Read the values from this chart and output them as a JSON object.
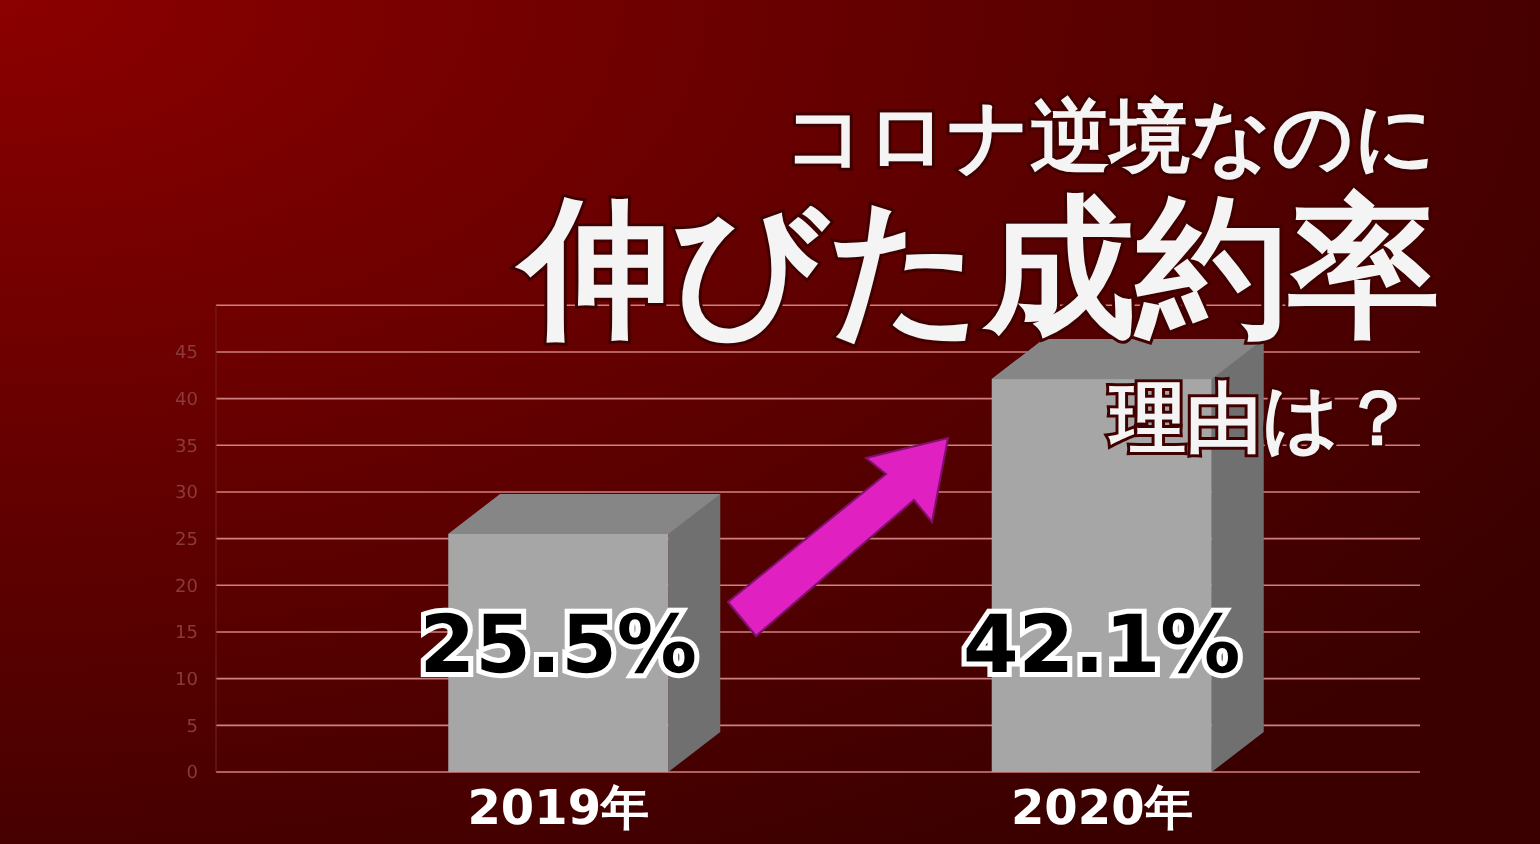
{
  "chart_data": {
    "type": "bar",
    "title": "伸びた成約率",
    "subtitle": "コロナ逆境なのに",
    "annotations": [
      "理由は？"
    ],
    "categories": [
      "2019年",
      "2020年"
    ],
    "values": [
      25.5,
      42.1
    ],
    "color": "#a6a6a6",
    "value_labels": [
      "25.5%",
      "42.1%"
    ],
    "ylim": [
      0,
      50
    ],
    "yticks": [
      0,
      5,
      10,
      15,
      20,
      25,
      30,
      35,
      40,
      45
    ],
    "grid": true
  }
}
